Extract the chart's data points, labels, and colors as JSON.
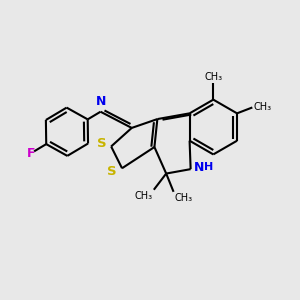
{
  "background_color": "#e8e8e8",
  "bond_color": "#000000",
  "S_color": "#c8b400",
  "N_color": "#0000ee",
  "F_color": "#cc00cc",
  "figsize": [
    3.0,
    3.0
  ],
  "dpi": 100,
  "xlim": [
    0,
    10
  ],
  "ylim": [
    0,
    10
  ],
  "lw": 1.5
}
